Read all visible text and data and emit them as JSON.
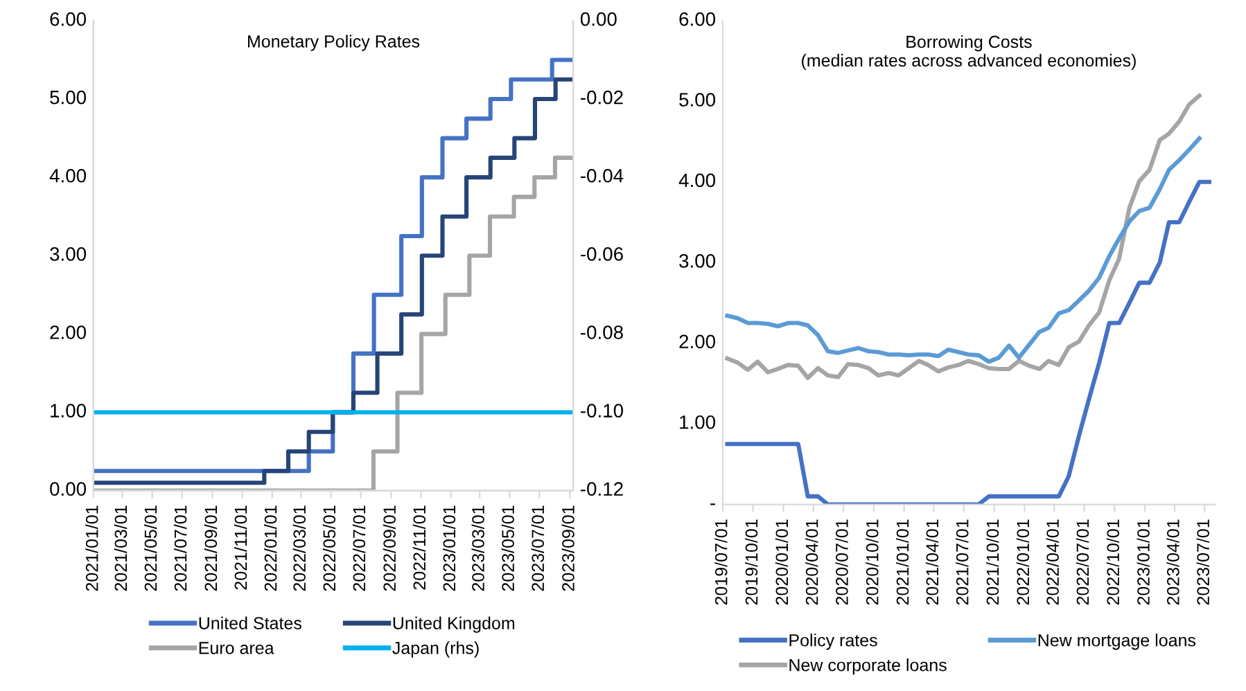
{
  "chart_data": [
    {
      "type": "step",
      "title": "Monetary Policy Rates",
      "xlim": [
        "2021-01-01",
        "2023-09-08"
      ],
      "xticks": [
        {
          "value": "2021-01-01",
          "label": "2021/01/01"
        },
        {
          "value": "2021-03-01",
          "label": "2021/03/01"
        },
        {
          "value": "2021-05-01",
          "label": "2021/05/01"
        },
        {
          "value": "2021-07-01",
          "label": "2021/07/01"
        },
        {
          "value": "2021-09-01",
          "label": "2021/09/01"
        },
        {
          "value": "2021-11-01",
          "label": "2021/11/01"
        },
        {
          "value": "2022-01-01",
          "label": "2022/01/01"
        },
        {
          "value": "2022-03-01",
          "label": "2022/03/01"
        },
        {
          "value": "2022-05-01",
          "label": "2022/05/01"
        },
        {
          "value": "2022-07-01",
          "label": "2022/07/01"
        },
        {
          "value": "2022-09-01",
          "label": "2022/09/01"
        },
        {
          "value": "2022-11-01",
          "label": "2022/11/01"
        },
        {
          "value": "2023-01-01",
          "label": "2023/01/01"
        },
        {
          "value": "2023-03-01",
          "label": "2023/03/01"
        },
        {
          "value": "2023-05-01",
          "label": "2023/05/01"
        },
        {
          "value": "2023-07-01",
          "label": "2023/07/01"
        },
        {
          "value": "2023-09-01",
          "label": "2023/09/01"
        }
      ],
      "ylim": [
        0,
        6
      ],
      "yticks": [
        {
          "value": 0,
          "label": "0.00"
        },
        {
          "value": 1,
          "label": "1.00"
        },
        {
          "value": 2,
          "label": "2.00"
        },
        {
          "value": 3,
          "label": "3.00"
        },
        {
          "value": 4,
          "label": "4.00"
        },
        {
          "value": 5,
          "label": "5.00"
        },
        {
          "value": 6,
          "label": "6.00"
        }
      ],
      "y2lim": [
        -0.12,
        0
      ],
      "y2ticks": [
        {
          "value": -0.12,
          "label": "-0.12"
        },
        {
          "value": -0.1,
          "label": "-0.10"
        },
        {
          "value": -0.08,
          "label": "-0.08"
        },
        {
          "value": -0.06,
          "label": "-0.06"
        },
        {
          "value": -0.04,
          "label": "-0.04"
        },
        {
          "value": -0.02,
          "label": "-0.02"
        },
        {
          "value": 0,
          "label": "0.00"
        }
      ],
      "legend": "bottom",
      "series": [
        {
          "name": "United States",
          "color": "#4472c4",
          "x": [
            "2021-01-01",
            "2022-03-17",
            "2022-05-05",
            "2022-06-16",
            "2022-07-28",
            "2022-09-22",
            "2022-11-03",
            "2022-12-15",
            "2023-02-02",
            "2023-03-23",
            "2023-05-04",
            "2023-07-27",
            "2023-09-05"
          ],
          "values": [
            0.25,
            0.5,
            1.0,
            1.75,
            2.5,
            3.25,
            4.0,
            4.5,
            4.75,
            5.0,
            5.25,
            5.5,
            5.5
          ]
        },
        {
          "name": "Euro area",
          "color": "#a5a5a5",
          "x": [
            "2021-01-01",
            "2022-07-27",
            "2022-09-14",
            "2022-11-02",
            "2022-12-21",
            "2023-02-08",
            "2023-03-22",
            "2023-05-10",
            "2023-06-21",
            "2023-08-02",
            "2023-09-05"
          ],
          "values": [
            0,
            0.5,
            1.25,
            2.0,
            2.5,
            3.0,
            3.5,
            3.75,
            4.0,
            4.25,
            4.25
          ]
        },
        {
          "name": "United Kingdom",
          "color": "#264478",
          "x": [
            "2021-01-01",
            "2021-12-16",
            "2022-02-03",
            "2022-03-17",
            "2022-05-05",
            "2022-06-16",
            "2022-08-04",
            "2022-09-22",
            "2022-11-03",
            "2022-12-15",
            "2023-02-02",
            "2023-03-23",
            "2023-05-11",
            "2023-06-22",
            "2023-08-03",
            "2023-09-05"
          ],
          "values": [
            0.1,
            0.25,
            0.5,
            0.75,
            1.0,
            1.25,
            1.75,
            2.25,
            3.0,
            3.5,
            4.0,
            4.25,
            4.5,
            5.0,
            5.25,
            5.25
          ]
        },
        {
          "name": "Japan (rhs)",
          "color": "#00b0f0",
          "axis": "y2",
          "x": [
            "2021-01-01",
            "2023-09-05"
          ],
          "values": [
            -0.1,
            -0.1
          ]
        }
      ]
    },
    {
      "type": "line",
      "title": "Borrowing Costs",
      "subtitle": "(median rates across advanced economies)",
      "xlim": [
        "2019-07-01",
        "2023-08-01"
      ],
      "xticks": [
        {
          "value": "2019-07-01",
          "label": "2019/07/01"
        },
        {
          "value": "2019-10-01",
          "label": "2019/10/01"
        },
        {
          "value": "2020-01-01",
          "label": "2020/01/01"
        },
        {
          "value": "2020-04-01",
          "label": "2020/04/01"
        },
        {
          "value": "2020-07-01",
          "label": "2020/07/01"
        },
        {
          "value": "2020-10-01",
          "label": "2020/10/01"
        },
        {
          "value": "2021-01-01",
          "label": "2021/01/01"
        },
        {
          "value": "2021-04-01",
          "label": "2021/04/01"
        },
        {
          "value": "2021-07-01",
          "label": "2021/07/01"
        },
        {
          "value": "2021-10-01",
          "label": "2021/10/01"
        },
        {
          "value": "2022-01-01",
          "label": "2022/01/01"
        },
        {
          "value": "2022-04-01",
          "label": "2022/04/01"
        },
        {
          "value": "2022-07-01",
          "label": "2022/07/01"
        },
        {
          "value": "2022-10-01",
          "label": "2022/10/01"
        },
        {
          "value": "2023-01-01",
          "label": "2023/01/01"
        },
        {
          "value": "2023-04-01",
          "label": "2023/04/01"
        },
        {
          "value": "2023-07-01",
          "label": "2023/07/01"
        }
      ],
      "ylim": [
        0,
        6
      ],
      "yticks": [
        {
          "value": 0,
          "label": "-"
        },
        {
          "value": 1,
          "label": "1.00"
        },
        {
          "value": 2,
          "label": "2.00"
        },
        {
          "value": 3,
          "label": "3.00"
        },
        {
          "value": 4,
          "label": "4.00"
        },
        {
          "value": 5,
          "label": "5.00"
        },
        {
          "value": 6,
          "label": "6.00"
        }
      ],
      "legend": "bottom",
      "x": [
        "2019-07-15",
        "2019-08-15",
        "2019-09-15",
        "2019-10-15",
        "2019-11-15",
        "2019-12-15",
        "2020-01-15",
        "2020-02-15",
        "2020-03-15",
        "2020-04-15",
        "2020-05-15",
        "2020-06-15",
        "2020-07-15",
        "2020-08-15",
        "2020-09-15",
        "2020-10-15",
        "2020-11-15",
        "2020-12-15",
        "2021-01-15",
        "2021-02-15",
        "2021-03-15",
        "2021-04-15",
        "2021-05-15",
        "2021-06-15",
        "2021-07-15",
        "2021-08-15",
        "2021-09-15",
        "2021-10-15",
        "2021-11-15",
        "2021-12-15",
        "2022-01-15",
        "2022-02-15",
        "2022-03-15",
        "2022-04-15",
        "2022-05-15",
        "2022-06-15",
        "2022-07-15",
        "2022-08-15",
        "2022-09-15",
        "2022-10-15",
        "2022-11-15",
        "2022-12-15",
        "2023-01-15",
        "2023-02-15",
        "2023-03-15",
        "2023-04-15",
        "2023-05-15",
        "2023-06-15",
        "2023-07-15"
      ],
      "series": [
        {
          "name": "Policy rates",
          "color": "#4472c4",
          "values": [
            0.75,
            0.75,
            0.75,
            0.75,
            0.75,
            0.75,
            0.75,
            0.75,
            0.1,
            0.1,
            0,
            0,
            0,
            0,
            0,
            0,
            0,
            0,
            0,
            0,
            0,
            0,
            0,
            0,
            0,
            0,
            0.1,
            0.1,
            0.1,
            0.1,
            0.1,
            0.1,
            0.1,
            0.1,
            0.35,
            0.85,
            1.3,
            1.75,
            2.25,
            2.25,
            2.5,
            2.75,
            2.75,
            3.0,
            3.5,
            3.5,
            3.75,
            4.0,
            4.0
          ]
        },
        {
          "name": "New corporate loans",
          "color": "#a5a5a5",
          "values": [
            1.81,
            1.76,
            1.67,
            1.77,
            1.64,
            1.68,
            1.73,
            1.72,
            1.57,
            1.69,
            1.6,
            1.58,
            1.74,
            1.73,
            1.69,
            1.6,
            1.63,
            1.6,
            1.69,
            1.78,
            1.73,
            1.65,
            1.7,
            1.73,
            1.78,
            1.74,
            1.69,
            1.68,
            1.68,
            1.78,
            1.72,
            1.68,
            1.78,
            1.73,
            1.95,
            2.02,
            2.22,
            2.38,
            2.78,
            3.05,
            3.68,
            4.01,
            4.15,
            4.52,
            4.6,
            4.75,
            4.96,
            5.07,
            null
          ]
        },
        {
          "name": "New mortgage loans",
          "color": "#5b9bd5",
          "values": [
            2.34,
            2.31,
            2.25,
            2.25,
            2.24,
            2.21,
            2.25,
            2.25,
            2.22,
            2.1,
            1.9,
            1.88,
            1.91,
            1.94,
            1.9,
            1.89,
            1.86,
            1.86,
            1.85,
            1.86,
            1.86,
            1.84,
            1.92,
            1.89,
            1.86,
            1.85,
            1.77,
            1.82,
            1.97,
            1.82,
            1.98,
            2.14,
            2.19,
            2.37,
            2.41,
            2.53,
            2.65,
            2.81,
            3.08,
            3.3,
            3.51,
            3.64,
            3.68,
            3.91,
            4.15,
            4.27,
            4.4,
            4.54,
            null
          ]
        }
      ]
    }
  ]
}
